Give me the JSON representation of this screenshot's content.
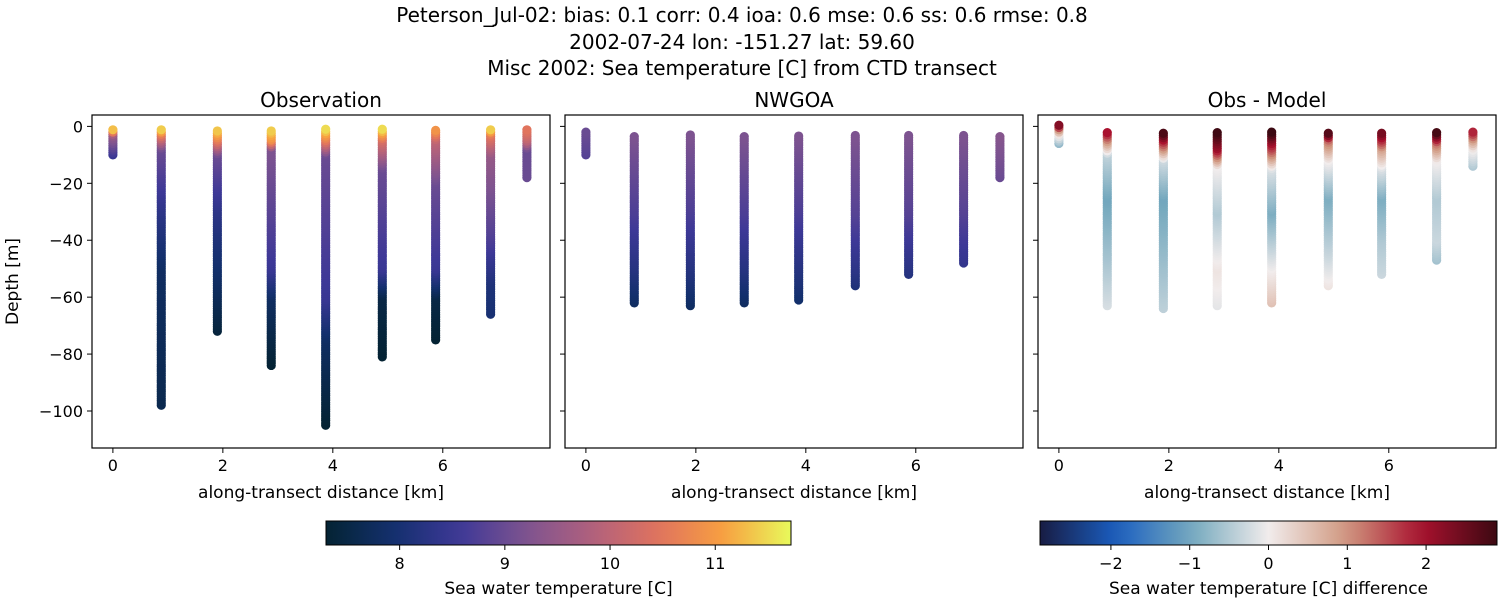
{
  "suptitle": [
    "Peterson_Jul-02: bias: 0.1  corr: 0.4  ioa: 0.6  mse: 0.6  ss: 0.6  rmse: 0.8",
    "2002-07-24 lon: -151.27 lat: 59.60",
    "Misc 2002: Sea temperature [C] from CTD transect"
  ],
  "chart_data": [
    {
      "type": "scatter",
      "title": "Observation",
      "xlabel": "along-transect distance [km]",
      "ylabel": "Depth [m]",
      "xlim": [
        -0.38,
        7.95
      ],
      "ylim": [
        -113,
        4
      ],
      "xticks": [
        0,
        2,
        4,
        6
      ],
      "yticks": [
        0,
        -20,
        -40,
        -60,
        -80,
        -100
      ],
      "colormap": "thermal",
      "clim": [
        7.3,
        11.72
      ],
      "stations": [
        {
          "x": 0,
          "depth": [
            -1,
            -3,
            -10
          ],
          "value": [
            11.5,
            9.5,
            8.5
          ]
        },
        {
          "x": 0.88,
          "depth": [
            -1,
            -3,
            -8,
            -30,
            -50,
            -98
          ],
          "value": [
            11.5,
            10.5,
            9.0,
            8.3,
            7.8,
            7.6
          ]
        },
        {
          "x": 1.9,
          "depth": [
            -1,
            -5,
            -10,
            -30,
            -55,
            -72
          ],
          "value": [
            11.5,
            10.5,
            9.0,
            8.3,
            7.8,
            7.4
          ]
        },
        {
          "x": 2.88,
          "depth": [
            -1,
            -5,
            -8,
            -50,
            -60,
            -84
          ],
          "value": [
            11.5,
            10.8,
            9.2,
            8.5,
            7.8,
            7.3
          ]
        },
        {
          "x": 3.87,
          "depth": [
            -1,
            -5,
            -10,
            -60,
            -75,
            -105
          ],
          "value": [
            11.5,
            10.5,
            9.0,
            8.5,
            7.8,
            7.3
          ]
        },
        {
          "x": 4.9,
          "depth": [
            -1,
            -5,
            -15,
            -50,
            -60,
            -81
          ],
          "value": [
            11.5,
            10.3,
            9.0,
            8.5,
            7.5,
            7.3
          ]
        },
        {
          "x": 5.87,
          "depth": [
            -1,
            -5,
            -20,
            -50,
            -60,
            -75
          ],
          "value": [
            11.0,
            10.0,
            9.0,
            8.5,
            7.5,
            7.3
          ]
        },
        {
          "x": 6.87,
          "depth": [
            -1,
            -3,
            -10,
            -40,
            -55,
            -66
          ],
          "value": [
            11.5,
            10.5,
            9.5,
            8.7,
            8.1,
            8.0
          ]
        },
        {
          "x": 7.53,
          "depth": [
            -1,
            -5,
            -8,
            -18
          ],
          "value": [
            10.5,
            10.0,
            9.0,
            9.0
          ]
        }
      ]
    },
    {
      "type": "scatter",
      "title": "NWGOA",
      "xlabel": "along-transect distance [km]",
      "xlim": [
        -0.38,
        7.95
      ],
      "ylim": [
        -113,
        4
      ],
      "xticks": [
        0,
        2,
        4,
        6
      ],
      "colormap": "thermal",
      "clim": [
        7.3,
        11.72
      ],
      "stations": [
        {
          "x": 0,
          "depth": [
            -2,
            -10
          ],
          "value": [
            9.0,
            8.8
          ]
        },
        {
          "x": 0.88,
          "depth": [
            -3,
            -30,
            -50,
            -62
          ],
          "value": [
            9.2,
            8.7,
            8.2,
            7.8
          ]
        },
        {
          "x": 1.9,
          "depth": [
            -3,
            -30,
            -50,
            -63
          ],
          "value": [
            9.2,
            8.7,
            8.2,
            7.8
          ]
        },
        {
          "x": 2.88,
          "depth": [
            -3,
            -30,
            -50,
            -62
          ],
          "value": [
            9.2,
            8.7,
            8.2,
            7.8
          ]
        },
        {
          "x": 3.87,
          "depth": [
            -3,
            -30,
            -50,
            -61
          ],
          "value": [
            9.2,
            8.7,
            8.2,
            7.9
          ]
        },
        {
          "x": 4.9,
          "depth": [
            -3,
            -30,
            -50,
            -56
          ],
          "value": [
            9.2,
            8.8,
            8.3,
            8.1
          ]
        },
        {
          "x": 5.87,
          "depth": [
            -3,
            -30,
            -52
          ],
          "value": [
            9.2,
            8.8,
            8.2
          ]
        },
        {
          "x": 6.87,
          "depth": [
            -3,
            -30,
            -48
          ],
          "value": [
            9.2,
            8.8,
            8.4
          ]
        },
        {
          "x": 7.53,
          "depth": [
            -3,
            -18
          ],
          "value": [
            9.3,
            9.0
          ]
        }
      ]
    },
    {
      "type": "scatter",
      "title": "Obs - Model",
      "xlabel": "along-transect distance [km]",
      "xlim": [
        -0.38,
        7.95
      ],
      "ylim": [
        -113,
        4
      ],
      "xticks": [
        0,
        2,
        4,
        6
      ],
      "colormap": "balance",
      "clim": [
        -2.9,
        2.9
      ],
      "stations": [
        {
          "x": 0,
          "depth": [
            1,
            -1,
            -3,
            -6
          ],
          "value": [
            2.8,
            1.0,
            0.0,
            -0.7
          ]
        },
        {
          "x": 0.88,
          "depth": [
            -2,
            -5,
            -10,
            -25,
            -45,
            -63
          ],
          "value": [
            2.0,
            1.0,
            -0.4,
            -1.0,
            -0.6,
            -0.2
          ]
        },
        {
          "x": 1.9,
          "depth": [
            -2,
            -6,
            -12,
            -25,
            -45,
            -64
          ],
          "value": [
            2.9,
            1.5,
            -0.3,
            -1.0,
            -0.7,
            -0.4
          ]
        },
        {
          "x": 2.88,
          "depth": [
            -2,
            -8,
            -14,
            -30,
            -50,
            -63
          ],
          "value": [
            2.9,
            2.0,
            0.0,
            -0.5,
            0.1,
            -0.1
          ]
        },
        {
          "x": 3.87,
          "depth": [
            -2,
            -8,
            -15,
            -30,
            -50,
            -62
          ],
          "value": [
            2.9,
            1.5,
            -0.2,
            -0.9,
            0.0,
            0.5
          ]
        },
        {
          "x": 4.9,
          "depth": [
            -2,
            -5,
            -12,
            -25,
            -45,
            -56
          ],
          "value": [
            2.9,
            1.2,
            0.0,
            -0.9,
            -0.3,
            0.1
          ]
        },
        {
          "x": 5.87,
          "depth": [
            -2,
            -8,
            -15,
            -25,
            -40,
            -52
          ],
          "value": [
            2.5,
            0.8,
            -0.2,
            -0.9,
            -0.5,
            -0.3
          ]
        },
        {
          "x": 6.87,
          "depth": [
            -2,
            -6,
            -12,
            -25,
            -40,
            -47
          ],
          "value": [
            2.9,
            1.2,
            0.0,
            -0.5,
            -0.3,
            -0.6
          ]
        },
        {
          "x": 7.53,
          "depth": [
            -2,
            -5,
            -8,
            -14
          ],
          "value": [
            1.8,
            0.8,
            0.0,
            -0.5
          ]
        }
      ]
    }
  ],
  "colorbars": [
    {
      "label": "Sea water temperature [C]",
      "ticks": [
        8,
        9,
        10,
        11
      ],
      "clim": [
        7.3,
        11.72
      ],
      "colormap": "thermal"
    },
    {
      "label": "Sea water temperature [C] difference",
      "ticks": [
        -2,
        -1,
        0,
        1,
        2
      ],
      "tick_labels": [
        "−2",
        "−1",
        "0",
        "1",
        "2"
      ],
      "clim": [
        -2.9,
        2.9
      ],
      "colormap": "balance"
    }
  ],
  "colormaps": {
    "thermal": [
      "#042333",
      "#13306d",
      "#3d3897",
      "#7d5390",
      "#b0607d",
      "#e0735e",
      "#f8a040",
      "#e8fa5b"
    ],
    "balance": [
      "#181c43",
      "#1a5ec0",
      "#75a9be",
      "#f1ecec",
      "#d19a82",
      "#a9112e",
      "#3c0912"
    ]
  }
}
